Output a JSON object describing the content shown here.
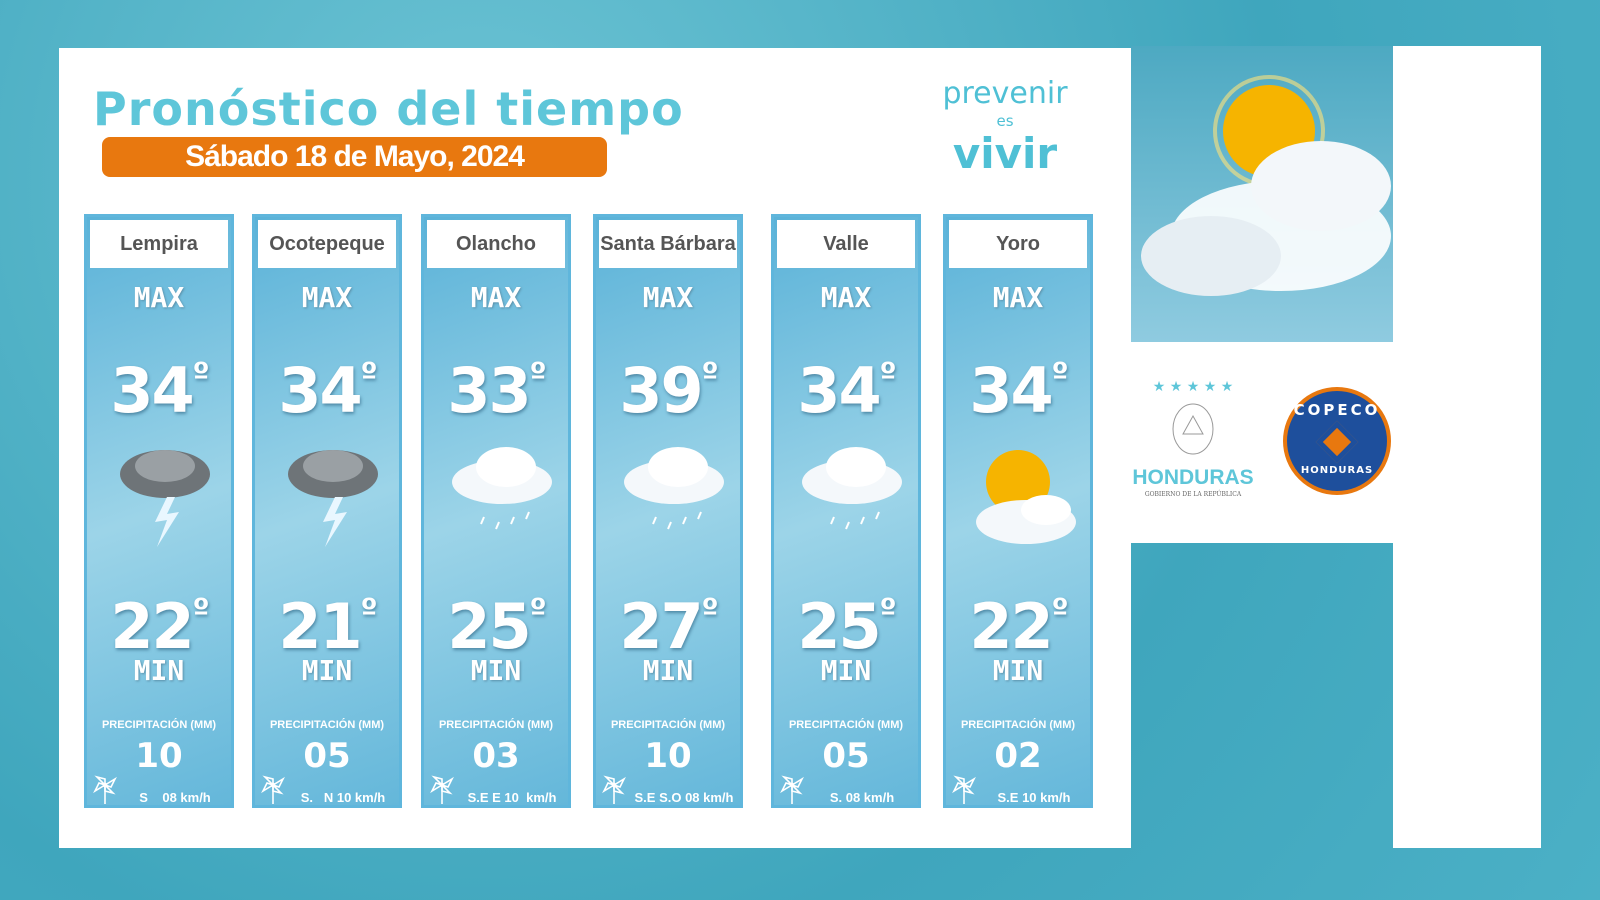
{
  "header": {
    "title": "Pronóstico del tiempo",
    "date": "Sábado 18 de Mayo, 2024"
  },
  "brand": {
    "line1": "prevenir",
    "line2": "es",
    "line3": "vivir"
  },
  "labels": {
    "max": "MAX",
    "min": "MIN",
    "precip": "PRECIPITACIÓN (MM)",
    "degree": "º"
  },
  "cards": [
    {
      "name": "Lempira",
      "max": "34",
      "min": "22",
      "precip": "10",
      "wind": "S    08 km/h",
      "icon": "storm"
    },
    {
      "name": "Ocotepeque",
      "max": "34",
      "min": "21",
      "precip": "05",
      "wind": "S.   N 10 km/h",
      "icon": "storm"
    },
    {
      "name": "Olancho",
      "max": "33",
      "min": "25",
      "precip": "03",
      "wind": "S.E E 10  km/h",
      "icon": "rain-cloud"
    },
    {
      "name": "Santa Bárbara",
      "max": "39",
      "min": "27",
      "precip": "10",
      "wind": "S.E S.O 08 km/h",
      "icon": "rain-cloud"
    },
    {
      "name": "Valle",
      "max": "34",
      "min": "25",
      "precip": "05",
      "wind": "S. 08 km/h",
      "icon": "rain-cloud"
    },
    {
      "name": "Yoro",
      "max": "34",
      "min": "22",
      "precip": "02",
      "wind": "S.E 10 km/h",
      "icon": "sun-cloud"
    }
  ],
  "logos": {
    "honduras": "HONDURAS",
    "honduras_sub": "GOBIERNO DE LA REPÚBLICA",
    "copeco_top": "COPECO",
    "copeco_bottom": "HONDURAS"
  },
  "colors": {
    "accent": "#e8780f",
    "title": "#5ec6d9",
    "card": "#5ab2d8",
    "copeco_blue": "#1e4f9c"
  }
}
